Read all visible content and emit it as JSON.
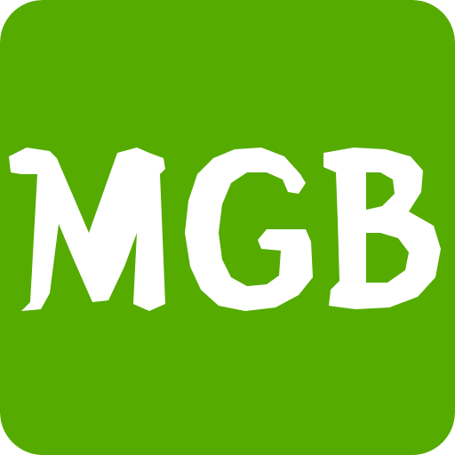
{
  "logo": {
    "text": "MGB",
    "background_color": "#55ab00",
    "text_color": "#ffffff"
  }
}
